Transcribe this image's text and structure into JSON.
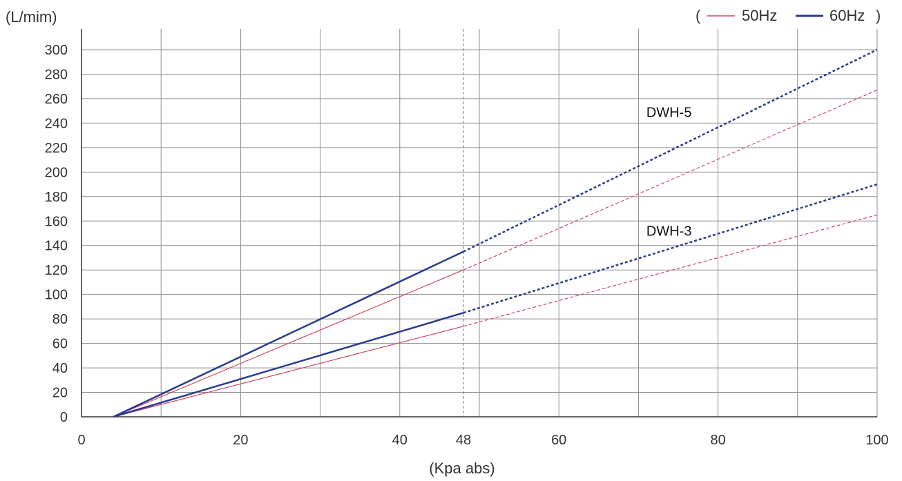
{
  "chart_data": {
    "type": "line",
    "ylabel": "(L/mim)",
    "xlabel": "(Kpa abs)",
    "xlim": [
      0,
      100
    ],
    "ylim": [
      0,
      300
    ],
    "x_ticks": [
      0,
      20,
      40,
      48,
      60,
      80,
      100
    ],
    "y_ticks": [
      0,
      20,
      40,
      60,
      80,
      100,
      120,
      140,
      160,
      180,
      200,
      220,
      240,
      260,
      280,
      300
    ],
    "x_grid": [
      0,
      10,
      20,
      30,
      40,
      50,
      60,
      70,
      80,
      90,
      100
    ],
    "reference_line_x": 48,
    "grid": true,
    "legend": {
      "position": "top-right",
      "open_paren": "(",
      "close_paren": ")",
      "entries": [
        {
          "label": "50Hz",
          "color": "#d2465f"
        },
        {
          "label": "60Hz",
          "color": "#2b3a8f"
        }
      ]
    },
    "series": [
      {
        "name": "50Hz",
        "model": "DWH-5",
        "color": "#d2465f",
        "x": [
          4,
          48,
          100
        ],
        "y": [
          0,
          120,
          267
        ],
        "solid_until_x": 48
      },
      {
        "name": "60Hz",
        "model": "DWH-5",
        "color": "#2b3a8f",
        "x": [
          4,
          48,
          100
        ],
        "y": [
          0,
          135,
          300
        ],
        "solid_until_x": 48
      },
      {
        "name": "50Hz",
        "model": "DWH-3",
        "color": "#d2465f",
        "x": [
          4,
          48,
          100
        ],
        "y": [
          0,
          74,
          165
        ],
        "solid_until_x": 48
      },
      {
        "name": "60Hz",
        "model": "DWH-3",
        "color": "#2b3a8f",
        "x": [
          4,
          48,
          100
        ],
        "y": [
          0,
          85,
          190
        ],
        "solid_until_x": 48
      }
    ],
    "annotations": [
      {
        "text": "DWH-5",
        "x": 71,
        "y": 245
      },
      {
        "text": "DWH-3",
        "x": 71,
        "y": 148
      }
    ]
  }
}
